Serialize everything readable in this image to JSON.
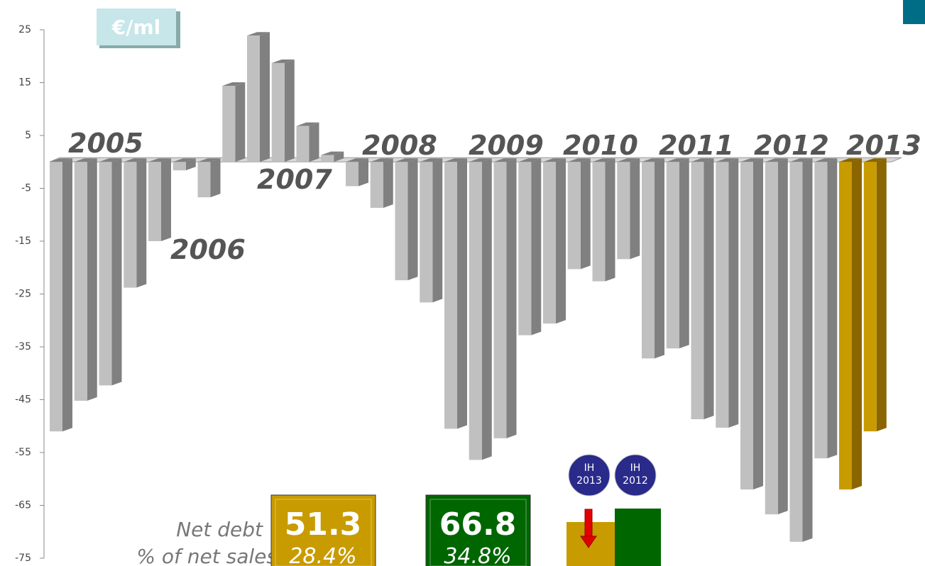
{
  "chart_data": {
    "type": "bar",
    "unit_label": "€/ml",
    "categories": [
      null,
      null,
      null,
      null,
      null,
      null,
      null,
      null,
      null,
      null,
      null,
      null,
      null,
      null,
      null,
      null,
      null,
      null,
      null,
      null,
      null,
      null,
      null,
      null,
      null,
      null,
      null,
      null,
      null,
      null,
      null,
      null,
      null,
      null
    ],
    "values": [
      -51,
      -45.2,
      -42.3,
      -23.8,
      -15,
      -1.6,
      -6.7,
      14.4,
      23.9,
      18.7,
      6.8,
      1.3,
      -4.6,
      -8.7,
      -22.4,
      -26.6,
      -50.5,
      -56.4,
      -52.3,
      -32.8,
      -30.6,
      -20.3,
      -22.6,
      -18.4,
      -37.2,
      -35.3,
      -48.7,
      -50.3,
      -62,
      -66.7,
      -71.9,
      -56.1,
      -62,
      -51
    ],
    "colors": [
      "#c0c0c0",
      "#c0c0c0",
      "#c0c0c0",
      "#c0c0c0",
      "#c0c0c0",
      "#c0c0c0",
      "#c0c0c0",
      "#c0c0c0",
      "#c0c0c0",
      "#c0c0c0",
      "#c0c0c0",
      "#c0c0c0",
      "#c0c0c0",
      "#c0c0c0",
      "#c0c0c0",
      "#c0c0c0",
      "#c0c0c0",
      "#c0c0c0",
      "#c0c0c0",
      "#c0c0c0",
      "#c0c0c0",
      "#c0c0c0",
      "#c0c0c0",
      "#c0c0c0",
      "#c0c0c0",
      "#c0c0c0",
      "#c0c0c0",
      "#c0c0c0",
      "#c0c0c0",
      "#c0c0c0",
      "#c0c0c0",
      "#c0c0c0",
      "#c89b00",
      "#c89b00"
    ],
    "ylim": [
      -75,
      25
    ],
    "yticks": [
      25,
      15,
      5,
      -5,
      -15,
      -25,
      -35,
      -45,
      -55,
      -65,
      -75
    ],
    "year_labels": [
      "2005",
      "2006",
      "2007",
      "2008",
      "2009",
      "2010",
      "2011",
      "2012",
      "2013"
    ],
    "net_debt_label": "Net debt",
    "pct_label": "% of net sales",
    "boxes": [
      {
        "value": "51.3",
        "pct": "28.4%",
        "color": "#c89b00"
      },
      {
        "value": "66.8",
        "pct": "34.8%",
        "color": "#006600"
      }
    ],
    "badges": [
      "IH 2013",
      "IH 2012"
    ]
  }
}
